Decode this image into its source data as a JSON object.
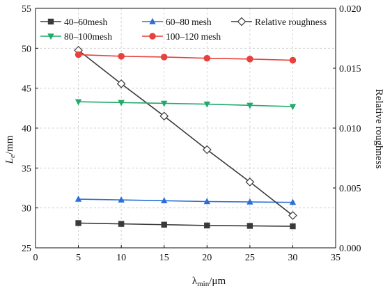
{
  "chart_data": {
    "type": "line",
    "title": "",
    "x": [
      5,
      10,
      15,
      20,
      25,
      30
    ],
    "xlabel": {
      "main": "λ",
      "sub": "min",
      "unit": "/μm"
    },
    "ylabel_left": {
      "main": "L",
      "sub": "e",
      "unit": "/mm"
    },
    "ylabel_right": "Relative roughness",
    "xlim": [
      0,
      35
    ],
    "ylim_left": [
      25,
      55
    ],
    "ylim_right": [
      0.0,
      0.02
    ],
    "xticks": [
      "0",
      "5",
      "10",
      "15",
      "20",
      "25",
      "30",
      "35"
    ],
    "yticks_left": [
      "25",
      "30",
      "35",
      "40",
      "45",
      "50",
      "55"
    ],
    "yticks_right": [
      "0.000",
      "0.005",
      "0.010",
      "0.015",
      "0.020"
    ],
    "grid": true,
    "legend_position": "top",
    "series": [
      {
        "name": "40–60mesh",
        "axis": "left",
        "color": "#3a3a3a",
        "marker": "square",
        "values": [
          28.1,
          28.0,
          27.9,
          27.8,
          27.75,
          27.7
        ]
      },
      {
        "name": "60–80 mesh",
        "axis": "left",
        "color": "#2b6fd6",
        "marker": "triangle-up",
        "values": [
          31.1,
          31.0,
          30.9,
          30.8,
          30.75,
          30.7
        ]
      },
      {
        "name": "Relative roughness",
        "axis": "right",
        "color": "#3a3a3a",
        "marker": "diamond-open",
        "values": [
          0.0165,
          0.0137,
          0.011,
          0.0082,
          0.0055,
          0.0027
        ]
      },
      {
        "name": "80–100mesh",
        "axis": "left",
        "color": "#22aa6a",
        "marker": "triangle-down",
        "values": [
          43.3,
          43.2,
          43.1,
          43.0,
          42.85,
          42.7
        ]
      },
      {
        "name": "100–120 mesh",
        "axis": "left",
        "color": "#e8413c",
        "marker": "circle",
        "values": [
          49.2,
          49.0,
          48.9,
          48.75,
          48.65,
          48.5
        ]
      }
    ]
  }
}
